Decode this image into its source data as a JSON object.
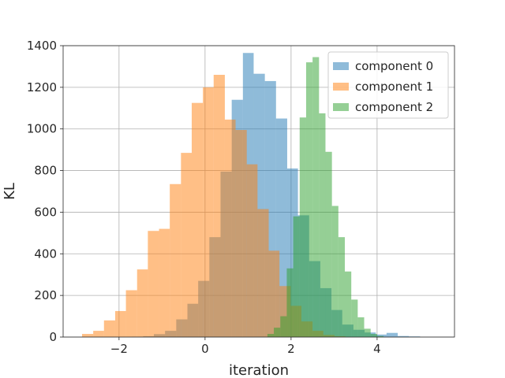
{
  "chart_data": {
    "type": "bar",
    "subtype": "overlaid-histogram",
    "xlabel": "iteration",
    "ylabel": "KL",
    "xlim": [
      -3.3,
      5.8
    ],
    "ylim": [
      0,
      1400
    ],
    "xticks": [
      -2,
      0,
      2,
      4
    ],
    "xtick_labels": [
      "−2",
      "0",
      "2",
      "4"
    ],
    "yticks": [
      0,
      200,
      400,
      600,
      800,
      1000,
      1200,
      1400
    ],
    "ytick_labels": [
      "0",
      "200",
      "400",
      "600",
      "800",
      "1000",
      "1200",
      "1400"
    ],
    "grid": true,
    "legend_position": "top-right",
    "bar_opacity": 0.5,
    "series": [
      {
        "name": "component 0",
        "color": "#1f77b4",
        "bins": [
          [
            -1.7,
            -1.44,
            2
          ],
          [
            -1.44,
            -1.19,
            4
          ],
          [
            -1.19,
            -0.93,
            14
          ],
          [
            -0.93,
            -0.67,
            30
          ],
          [
            -0.67,
            -0.41,
            85
          ],
          [
            -0.41,
            -0.16,
            160
          ],
          [
            -0.16,
            0.1,
            270
          ],
          [
            0.1,
            0.36,
            480
          ],
          [
            0.36,
            0.62,
            795
          ],
          [
            0.62,
            0.88,
            1140
          ],
          [
            0.88,
            1.13,
            1365
          ],
          [
            1.13,
            1.39,
            1265
          ],
          [
            1.39,
            1.65,
            1230
          ],
          [
            1.65,
            1.91,
            1050
          ],
          [
            1.91,
            2.16,
            810
          ],
          [
            2.16,
            2.42,
            585
          ],
          [
            2.42,
            2.68,
            365
          ],
          [
            2.68,
            2.94,
            235
          ],
          [
            2.94,
            3.19,
            130
          ],
          [
            3.19,
            3.45,
            60
          ],
          [
            3.45,
            3.71,
            35
          ],
          [
            3.71,
            3.97,
            22
          ],
          [
            3.97,
            4.22,
            12
          ],
          [
            4.22,
            4.48,
            20
          ],
          [
            4.48,
            4.74,
            5
          ],
          [
            4.74,
            5.0,
            3
          ]
        ]
      },
      {
        "name": "component 1",
        "color": "#ff7f0e",
        "bins": [
          [
            -2.86,
            -2.6,
            15
          ],
          [
            -2.6,
            -2.35,
            30
          ],
          [
            -2.35,
            -2.09,
            80
          ],
          [
            -2.09,
            -1.84,
            125
          ],
          [
            -1.84,
            -1.58,
            225
          ],
          [
            -1.58,
            -1.33,
            325
          ],
          [
            -1.33,
            -1.07,
            510
          ],
          [
            -1.07,
            -0.82,
            520
          ],
          [
            -0.82,
            -0.56,
            735
          ],
          [
            -0.56,
            -0.31,
            885
          ],
          [
            -0.31,
            -0.05,
            1125
          ],
          [
            -0.05,
            0.2,
            1200
          ],
          [
            0.2,
            0.46,
            1260
          ],
          [
            0.46,
            0.71,
            1045
          ],
          [
            0.71,
            0.97,
            995
          ],
          [
            0.97,
            1.22,
            830
          ],
          [
            1.22,
            1.48,
            615
          ],
          [
            1.48,
            1.73,
            415
          ],
          [
            1.73,
            1.99,
            245
          ],
          [
            1.99,
            2.24,
            150
          ],
          [
            2.24,
            2.5,
            75
          ],
          [
            2.5,
            2.75,
            30
          ],
          [
            2.75,
            3.01,
            10
          ],
          [
            3.01,
            3.26,
            4
          ]
        ]
      },
      {
        "name": "component 2",
        "color": "#2ca02c",
        "bins": [
          [
            1.45,
            1.6,
            15
          ],
          [
            1.6,
            1.75,
            45
          ],
          [
            1.75,
            1.9,
            100
          ],
          [
            1.9,
            2.05,
            330
          ],
          [
            2.05,
            2.2,
            580
          ],
          [
            2.2,
            2.35,
            1055
          ],
          [
            2.35,
            2.5,
            1320
          ],
          [
            2.5,
            2.65,
            1345
          ],
          [
            2.65,
            2.8,
            1075
          ],
          [
            2.8,
            2.95,
            890
          ],
          [
            2.95,
            3.1,
            630
          ],
          [
            3.1,
            3.25,
            480
          ],
          [
            3.25,
            3.4,
            315
          ],
          [
            3.4,
            3.55,
            180
          ],
          [
            3.55,
            3.7,
            95
          ],
          [
            3.7,
            3.85,
            40
          ],
          [
            3.85,
            4.0,
            15
          ],
          [
            4.0,
            4.15,
            5
          ]
        ]
      }
    ]
  }
}
